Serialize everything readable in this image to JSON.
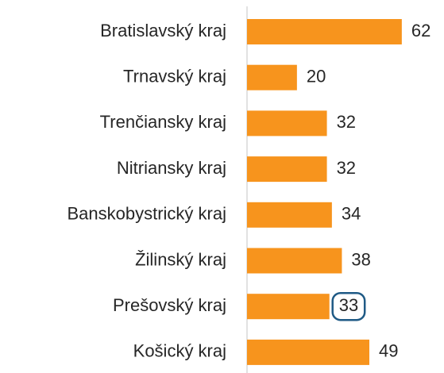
{
  "chart_data": {
    "type": "bar",
    "orientation": "horizontal",
    "categories": [
      "Bratislavský kraj",
      "Trnavský kraj",
      "Trenčiansky kraj",
      "Nitriansky kraj",
      "Banskobystrický kraj",
      "Žilinský kraj",
      "Prešovský kraj",
      "Košický kraj"
    ],
    "values": [
      62,
      20,
      32,
      32,
      34,
      38,
      33,
      49
    ],
    "color": "#f7941d",
    "xlim": [
      0,
      70
    ],
    "highlight_index": 6,
    "highlight_color": "#1f5a85"
  }
}
